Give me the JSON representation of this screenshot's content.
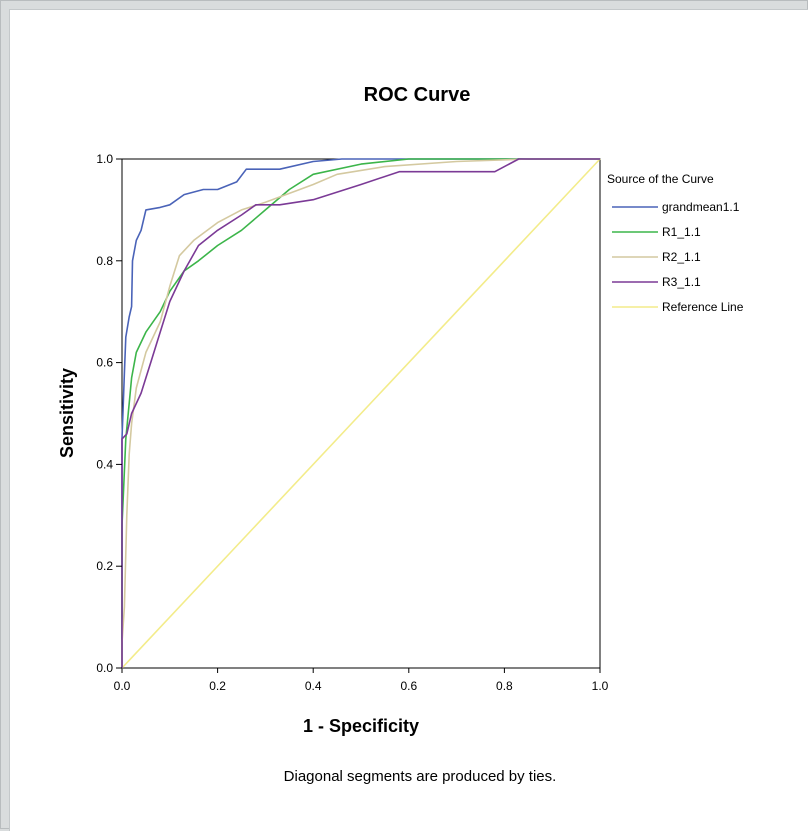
{
  "chart_data": {
    "type": "line",
    "title": "ROC Curve",
    "xlabel": "1 - Specificity",
    "ylabel": "Sensitivity",
    "xlim": [
      0,
      1
    ],
    "ylim": [
      0,
      1
    ],
    "xticks": [
      "0.0",
      "0.2",
      "0.4",
      "0.6",
      "0.8",
      "1.0"
    ],
    "yticks": [
      "0.0",
      "0.2",
      "0.4",
      "0.6",
      "0.8",
      "1.0"
    ],
    "grid": false,
    "legend": {
      "title": "Source of the Curve",
      "position": "right"
    },
    "series": [
      {
        "name": "grandmean1.1",
        "color": "#4a63b8",
        "points": [
          [
            0,
            0
          ],
          [
            0,
            0.45
          ],
          [
            0.005,
            0.58
          ],
          [
            0.008,
            0.65
          ],
          [
            0.015,
            0.69
          ],
          [
            0.02,
            0.71
          ],
          [
            0.022,
            0.8
          ],
          [
            0.03,
            0.84
          ],
          [
            0.04,
            0.86
          ],
          [
            0.05,
            0.9
          ],
          [
            0.08,
            0.905
          ],
          [
            0.1,
            0.91
          ],
          [
            0.13,
            0.93
          ],
          [
            0.17,
            0.94
          ],
          [
            0.2,
            0.94
          ],
          [
            0.24,
            0.955
          ],
          [
            0.26,
            0.98
          ],
          [
            0.3,
            0.98
          ],
          [
            0.33,
            0.98
          ],
          [
            0.4,
            0.995
          ],
          [
            0.46,
            1
          ],
          [
            1,
            1
          ]
        ]
      },
      {
        "name": "R1_1.1",
        "color": "#3cb54a",
        "points": [
          [
            0,
            0
          ],
          [
            0,
            0.28
          ],
          [
            0.008,
            0.45
          ],
          [
            0.015,
            0.52
          ],
          [
            0.02,
            0.57
          ],
          [
            0.03,
            0.62
          ],
          [
            0.05,
            0.66
          ],
          [
            0.08,
            0.7
          ],
          [
            0.1,
            0.74
          ],
          [
            0.13,
            0.78
          ],
          [
            0.16,
            0.8
          ],
          [
            0.2,
            0.83
          ],
          [
            0.25,
            0.86
          ],
          [
            0.3,
            0.9
          ],
          [
            0.35,
            0.94
          ],
          [
            0.4,
            0.97
          ],
          [
            0.5,
            0.99
          ],
          [
            0.6,
            1
          ],
          [
            1,
            1
          ]
        ]
      },
      {
        "name": "R2_1.1",
        "color": "#d4c9a0",
        "points": [
          [
            0,
            0
          ],
          [
            0,
            0.05
          ],
          [
            0.005,
            0.12
          ],
          [
            0.01,
            0.3
          ],
          [
            0.015,
            0.42
          ],
          [
            0.02,
            0.48
          ],
          [
            0.03,
            0.55
          ],
          [
            0.05,
            0.62
          ],
          [
            0.08,
            0.68
          ],
          [
            0.1,
            0.75
          ],
          [
            0.12,
            0.81
          ],
          [
            0.15,
            0.84
          ],
          [
            0.2,
            0.875
          ],
          [
            0.25,
            0.9
          ],
          [
            0.3,
            0.915
          ],
          [
            0.4,
            0.95
          ],
          [
            0.45,
            0.97
          ],
          [
            0.55,
            0.985
          ],
          [
            0.7,
            0.995
          ],
          [
            0.85,
            1
          ],
          [
            1,
            1
          ]
        ]
      },
      {
        "name": "R3_1.1",
        "color": "#7b3a96",
        "points": [
          [
            0,
            0
          ],
          [
            0,
            0.45
          ],
          [
            0.01,
            0.46
          ],
          [
            0.02,
            0.5
          ],
          [
            0.04,
            0.54
          ],
          [
            0.06,
            0.6
          ],
          [
            0.08,
            0.66
          ],
          [
            0.1,
            0.72
          ],
          [
            0.13,
            0.78
          ],
          [
            0.16,
            0.83
          ],
          [
            0.2,
            0.86
          ],
          [
            0.25,
            0.89
          ],
          [
            0.28,
            0.91
          ],
          [
            0.33,
            0.91
          ],
          [
            0.4,
            0.92
          ],
          [
            0.5,
            0.95
          ],
          [
            0.58,
            0.975
          ],
          [
            0.78,
            0.975
          ],
          [
            0.83,
            1
          ],
          [
            1,
            1
          ]
        ]
      },
      {
        "name": "Reference Line",
        "color": "#f3ec8a",
        "points": [
          [
            0,
            0
          ],
          [
            1,
            1
          ]
        ]
      }
    ],
    "footnote": "Diagonal segments are produced by ties."
  }
}
